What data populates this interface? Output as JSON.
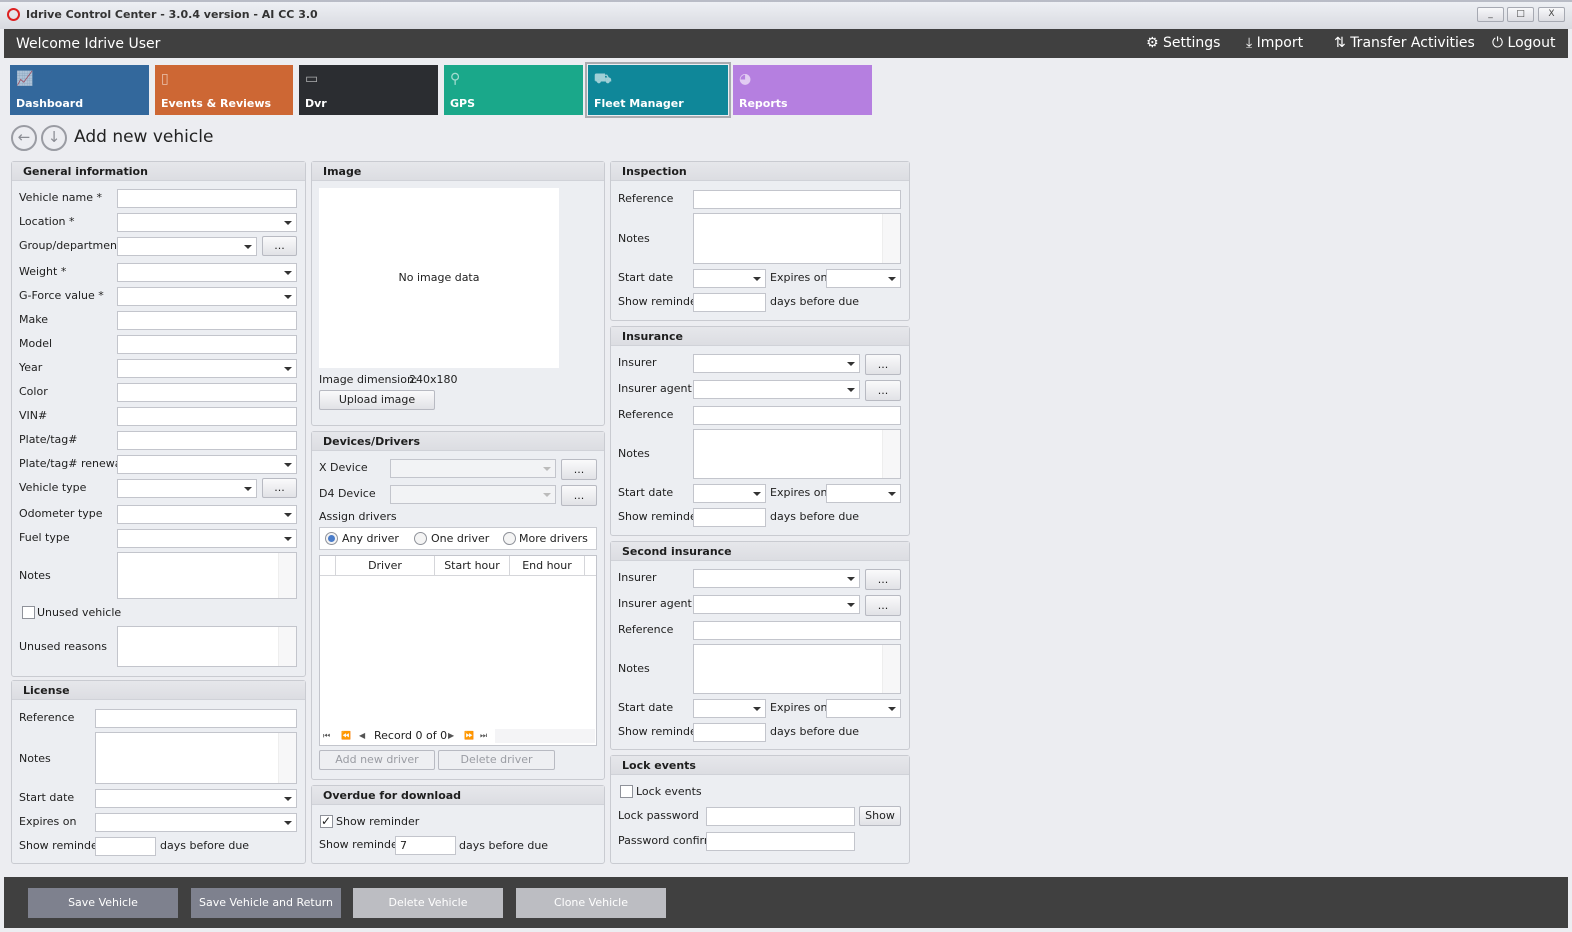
{
  "window": {
    "title": "Idrive Control Center - 3.0.4 version - AI CC 3.0",
    "minimize": "_",
    "maximize": "□",
    "close": "X"
  },
  "header": {
    "welcome": "Welcome Idrive User",
    "settings": "Settings",
    "import": "Import",
    "transfer": "Transfer Activities",
    "logout": "Logout"
  },
  "tiles": [
    {
      "label": "Dashboard",
      "color": "#33689c",
      "icon": "chart-icon"
    },
    {
      "label": "Events & Reviews",
      "color": "#cd6734",
      "icon": "clipboard-icon"
    },
    {
      "label": "Dvr",
      "color": "#2b2d31",
      "icon": "dvr-icon"
    },
    {
      "label": "GPS",
      "color": "#1aa88a",
      "icon": "map-pin-icon"
    },
    {
      "label": "Fleet Manager",
      "color": "#0f8799",
      "icon": "vehicles-icon",
      "selected": true
    },
    {
      "label": "Reports",
      "color": "#b57fe0",
      "icon": "pie-chart-icon"
    }
  ],
  "page": {
    "title": "Add new vehicle",
    "back": "←",
    "down": "↓"
  },
  "general": {
    "title": "General information",
    "vehicle_name": "Vehicle name *",
    "location": "Location *",
    "group": "Group/department",
    "weight": "Weight *",
    "gforce": "G-Force value *",
    "make": "Make",
    "model": "Model",
    "year": "Year",
    "color": "Color",
    "vin": "VIN#",
    "plate": "Plate/tag#",
    "plate_renewal": "Plate/tag# renewal",
    "vehicle_type": "Vehicle type",
    "odometer": "Odometer type",
    "fuel": "Fuel type",
    "notes": "Notes",
    "unused": "Unused vehicle",
    "unused_reasons": "Unused reasons",
    "more": "..."
  },
  "license": {
    "title": "License",
    "reference": "Reference",
    "notes": "Notes",
    "start": "Start date",
    "expires": "Expires on",
    "reminder": "Show reminder",
    "days": "days before due"
  },
  "image": {
    "title": "Image",
    "empty": "No image data",
    "dimension_label": "Image dimension:",
    "dimension": "240x180",
    "upload": "Upload image"
  },
  "devices": {
    "title": "Devices/Drivers",
    "x_device": "X Device",
    "d4_device": "D4 Device",
    "more": "...",
    "assign": "Assign drivers",
    "radios": [
      "Any driver",
      "One driver",
      "More drivers"
    ],
    "selected": "Any driver",
    "columns": [
      "Driver",
      "Start hour",
      "End hour"
    ],
    "record": "Record 0 of 0",
    "add": "Add new driver",
    "delete": "Delete driver"
  },
  "overdue": {
    "title": "Overdue for download",
    "show_check": "Show reminder",
    "checked": true,
    "reminder": "Show reminder",
    "value": "7",
    "days": "days before due"
  },
  "inspection": {
    "title": "Inspection",
    "reference": "Reference",
    "notes": "Notes",
    "start": "Start date",
    "expires": "Expires on",
    "reminder": "Show reminder",
    "days": "days before due"
  },
  "insurance": {
    "title": "Insurance",
    "insurer": "Insurer",
    "agent": "Insurer agent",
    "reference": "Reference",
    "notes": "Notes",
    "start": "Start date",
    "expires": "Expires on",
    "reminder": "Show reminder",
    "days": "days before due",
    "more": "..."
  },
  "insurance2": {
    "title": "Second insurance",
    "insurer": "Insurer",
    "agent": "Insurer agent",
    "reference": "Reference",
    "notes": "Notes",
    "start": "Start date",
    "expires": "Expires on",
    "reminder": "Show reminder",
    "days": "days before due",
    "more": "..."
  },
  "lock": {
    "title": "Lock events",
    "check": "Lock events",
    "password": "Lock password",
    "show": "Show",
    "confirm": "Password confirm"
  },
  "footer": {
    "save": "Save Vehicle",
    "save_return": "Save Vehicle and Return",
    "delete": "Delete Vehicle",
    "clone": "Clone Vehicle"
  }
}
